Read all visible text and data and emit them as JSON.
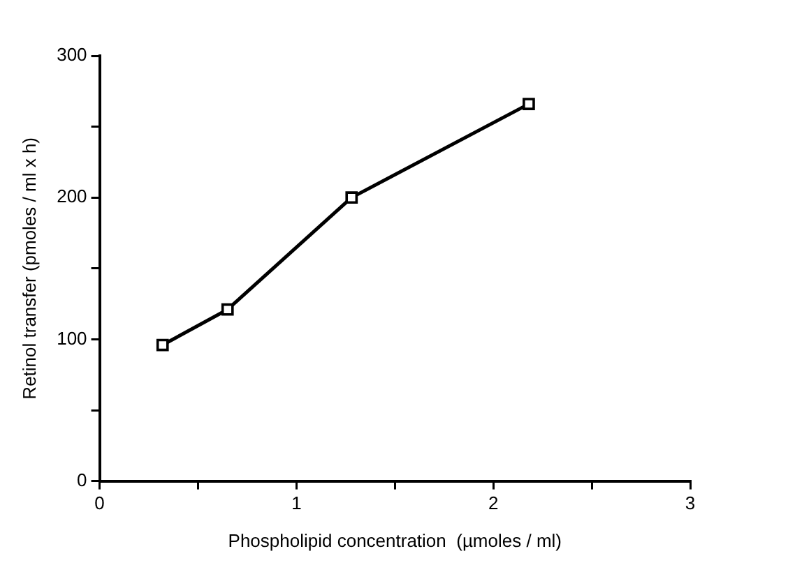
{
  "chart_data": {
    "type": "line",
    "xlabel": "Phospholipid concentration  (µmoles / ml)",
    "ylabel": "Retinol transfer (pmoles / ml x h)",
    "x": [
      0.32,
      0.65,
      1.28,
      2.18
    ],
    "series": [
      {
        "color": "#000000",
        "values": [
          96,
          121,
          200,
          266
        ]
      }
    ],
    "xlim": [
      0,
      3
    ],
    "xticks": [
      0,
      {
        "value": 0.5,
        "label": null
      },
      1,
      {
        "value": 1.5,
        "label": null
      },
      2,
      {
        "value": 2.5,
        "label": null
      },
      3
    ],
    "ylim": [
      0,
      300
    ],
    "yticks": [
      0,
      {
        "value": 50,
        "label": null
      },
      100,
      {
        "value": 150,
        "label": null
      },
      200,
      {
        "value": 250,
        "label": null
      },
      300
    ],
    "grid": false,
    "legend": false,
    "marker": "square",
    "line_style": "solid"
  }
}
